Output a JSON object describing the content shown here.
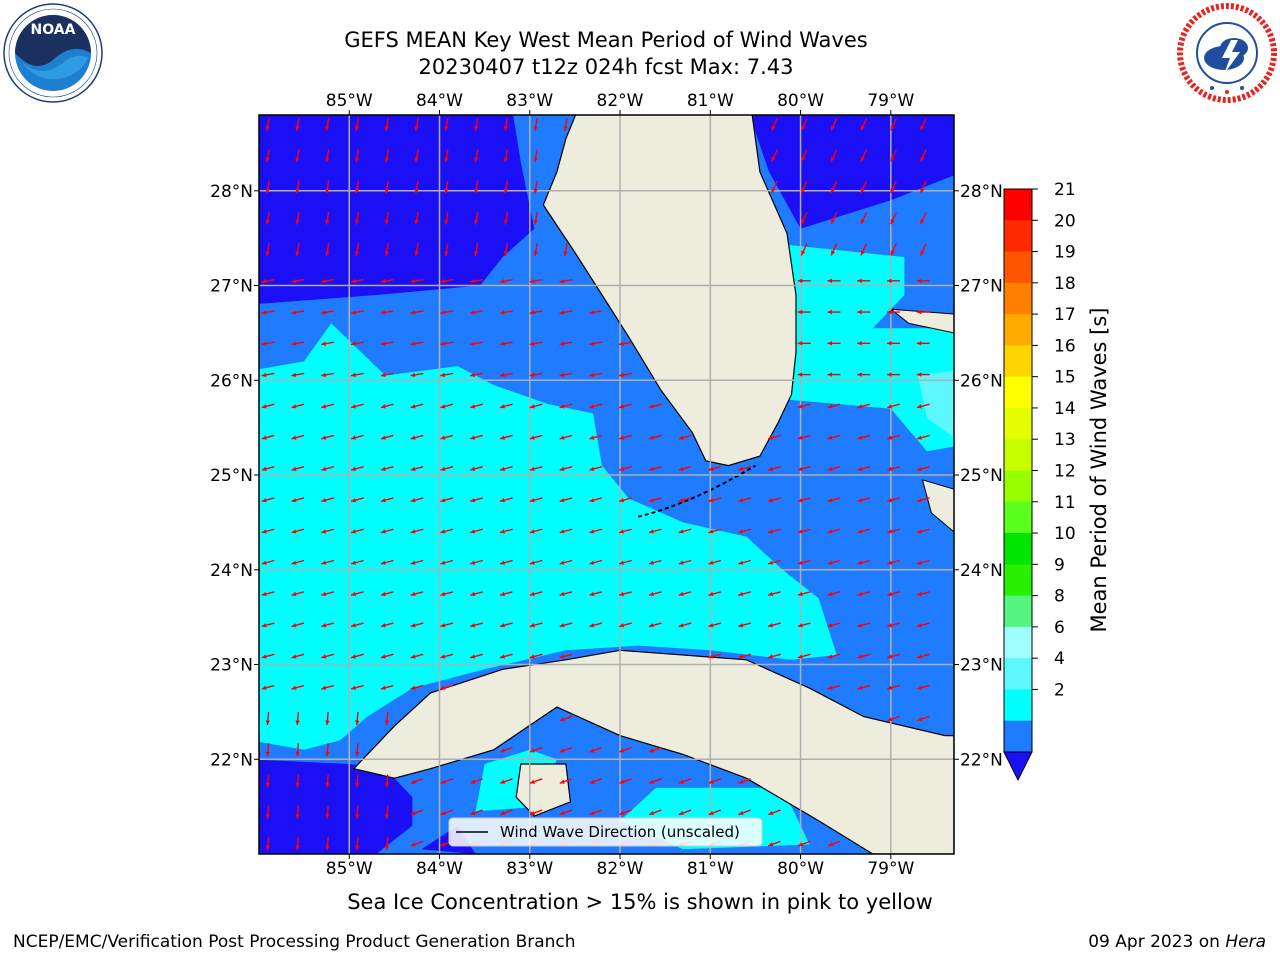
{
  "title_line1": "GEFS MEAN Key West Mean Period of Wind Waves",
  "title_line2": "20230407 t12z 024h fcst   Max: 7.43",
  "logos": {
    "left": {
      "name": "NOAA",
      "text": "NOAA",
      "ring_text": "NATIONAL OCEANIC AND ATMOSPHERIC ADMINISTRATION · U.S. DEPARTMENT OF COMMERCE"
    },
    "right": {
      "name": "National Weather Service",
      "ring_text": "NATIONAL WEATHER SERVICE"
    }
  },
  "map": {
    "lon_range": [
      -86.0,
      -78.3
    ],
    "lat_range": [
      21.0,
      28.8
    ],
    "lon_ticks": [
      "85°W",
      "84°W",
      "83°W",
      "82°W",
      "81°W",
      "80°W",
      "79°W"
    ],
    "lat_ticks": [
      "28°N",
      "27°N",
      "26°N",
      "25°N",
      "24°N",
      "23°N",
      "22°N"
    ],
    "gridlines": true,
    "legend_label": "Wind Wave Direction (unscaled)",
    "legend_position": "bottom-center",
    "colors": {
      "land": "#eeecdd",
      "level_2_4": "#1f7bff",
      "level_0_2": "#1a0ff5",
      "level_4_6": "#00ffff",
      "level_6_8": "#5ff7ff",
      "arrow": "#ff0000",
      "grid": "#b0b0b0"
    }
  },
  "colorbar": {
    "label": "Mean Period of Wind Waves [s]",
    "ticks": [
      "21",
      "20",
      "19",
      "18",
      "17",
      "16",
      "15",
      "14",
      "13",
      "12",
      "11",
      "10",
      "9",
      "8",
      "6",
      "4",
      "2"
    ],
    "colors": [
      "#ff0000",
      "#ff2a00",
      "#ff5500",
      "#ff8000",
      "#ffaa00",
      "#ffd500",
      "#ffff00",
      "#e6ff00",
      "#c8ff00",
      "#96ff00",
      "#5aff1e",
      "#00e600",
      "#28f000",
      "#55f580",
      "#a0ffff",
      "#5ff7ff",
      "#00ffff",
      "#1f7bff"
    ],
    "extend_min_color": "#1a0ff5"
  },
  "footer_note": "Sea Ice Concentration > 15% is shown in pink to yellow",
  "credit": "NCEP/EMC/Verification Post Processing Product Generation Branch",
  "date_text": "09 Apr 2023 on ",
  "date_host": "Hera"
}
